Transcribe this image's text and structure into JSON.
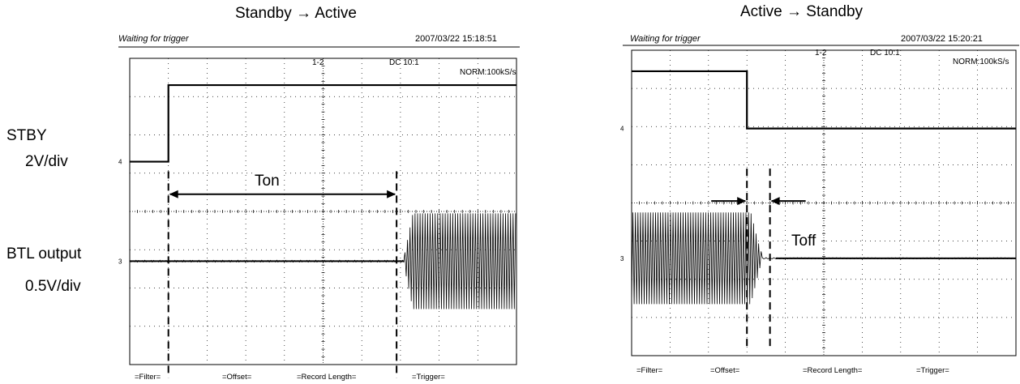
{
  "left_scope": {
    "title": "Standby  → Active",
    "status": "Waiting for trigger",
    "timestamp": "2007/03/22  15:18:51",
    "channel_label": "1-2",
    "coupling": "DC  10:1",
    "mode": "NORM:100kS/s",
    "footer": [
      "=Filter=",
      "=Offset=",
      "=Record  Length=",
      "=Trigger="
    ],
    "annotation": "Ton"
  },
  "right_scope": {
    "title": "Active →  Standby",
    "status": "Waiting for trigger",
    "timestamp": "2007/03/22  15:20:21",
    "channel_label": "1-2",
    "coupling": "DC  10:1",
    "mode": "NORM:100kS/s",
    "footer": [
      "=Filter=",
      "=Offset=",
      "=Record  Length=",
      "=Trigger="
    ],
    "annotation": "Toff"
  },
  "side_labels": {
    "stby": "STBY",
    "stby_scale": "2V/div",
    "btl": "BTL output",
    "btl_scale": "0.5V/div"
  },
  "chart_data": [
    {
      "type": "line",
      "title": "Standby  → Active",
      "grid": true,
      "divisions": {
        "x": 10,
        "y": 8
      },
      "series": [
        {
          "points": [
            [
              0,
              2.7
            ],
            [
              1.0,
              2.7
            ],
            [
              1.0,
              0.7
            ],
            [
              10,
              0.7
            ]
          ]
        },
        {
          "baseline_div": 5.3,
          "burst_start_div": 7.1,
          "burst_amplitude_div": 1.25
        }
      ],
      "markers": {
        "ton_start_div": 1.0,
        "ton_end_div": 6.9
      }
    },
    {
      "type": "line",
      "title": "Active →  Standby",
      "grid": true,
      "divisions": {
        "x": 10,
        "y": 8
      },
      "series": [
        {
          "points": [
            [
              0,
              0.55
            ],
            [
              3.0,
              0.55
            ],
            [
              3.0,
              2.05
            ],
            [
              10,
              2.05
            ]
          ]
        },
        {
          "baseline_div": 5.45,
          "burst_end_div": 3.4,
          "burst_amplitude_div": 1.2
        }
      ],
      "markers": {
        "toff_start_div": 3.0,
        "toff_end_div": 3.6
      }
    }
  ]
}
